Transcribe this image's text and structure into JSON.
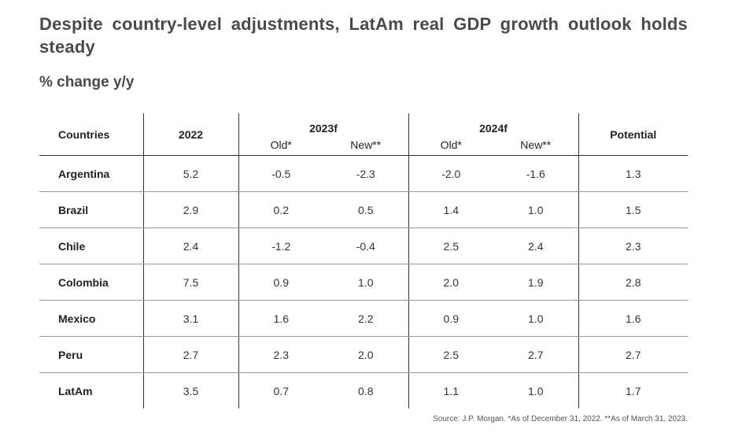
{
  "title": "Despite country-level adjustments, LatAm real GDP growth outlook holds steady",
  "subtitle": "% change y/y",
  "table": {
    "headers": {
      "countries": "Countries",
      "y2022": "2022",
      "y2023f": "2023f",
      "y2024f": "2024f",
      "potential": "Potential",
      "old": "Old*",
      "new": "New**"
    },
    "rows": [
      {
        "country": "Argentina",
        "y2022": "5.2",
        "old2023": "-0.5",
        "new2023": "-2.3",
        "old2024": "-2.0",
        "new2024": "-1.6",
        "potential": "1.3"
      },
      {
        "country": "Brazil",
        "y2022": "2.9",
        "old2023": "0.2",
        "new2023": "0.5",
        "old2024": "1.4",
        "new2024": "1.0",
        "potential": "1.5"
      },
      {
        "country": "Chile",
        "y2022": "2.4",
        "old2023": "-1.2",
        "new2023": "-0.4",
        "old2024": "2.5",
        "new2024": "2.4",
        "potential": "2.3"
      },
      {
        "country": "Colombia",
        "y2022": "7.5",
        "old2023": "0.9",
        "new2023": "1.0",
        "old2024": "2.0",
        "new2024": "1.9",
        "potential": "2.8"
      },
      {
        "country": "Mexico",
        "y2022": "3.1",
        "old2023": "1.6",
        "new2023": "2.2",
        "old2024": "0.9",
        "new2024": "1.0",
        "potential": "1.6"
      },
      {
        "country": "Peru",
        "y2022": "2.7",
        "old2023": "2.3",
        "new2023": "2.0",
        "old2024": "2.5",
        "new2024": "2.7",
        "potential": "2.7"
      },
      {
        "country": "LatAm",
        "y2022": "3.5",
        "old2023": "0.7",
        "new2023": "0.8",
        "old2024": "1.1",
        "new2024": "1.0",
        "potential": "1.7"
      }
    ]
  },
  "source": "Source: J.P. Morgan. *As of December 31, 2022. **As of March 31, 2023."
}
